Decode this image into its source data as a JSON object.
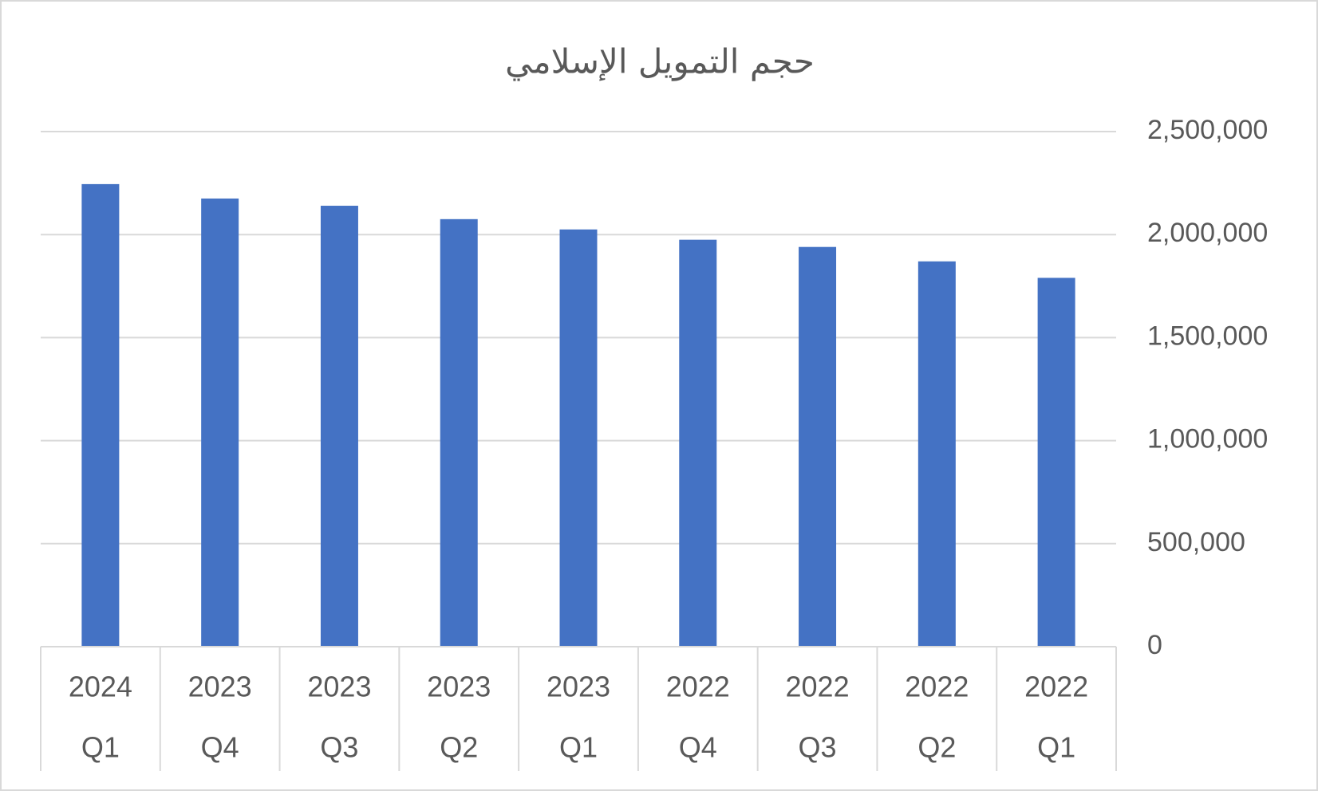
{
  "chart_data": {
    "type": "bar",
    "title": "حجم التمويل الإسلامي",
    "categories": [
      {
        "year": "2024",
        "quarter": "Q1"
      },
      {
        "year": "2023",
        "quarter": "Q4"
      },
      {
        "year": "2023",
        "quarter": "Q3"
      },
      {
        "year": "2023",
        "quarter": "Q2"
      },
      {
        "year": "2023",
        "quarter": "Q1"
      },
      {
        "year": "2022",
        "quarter": "Q4"
      },
      {
        "year": "2022",
        "quarter": "Q3"
      },
      {
        "year": "2022",
        "quarter": "Q2"
      },
      {
        "year": "2022",
        "quarter": "Q1"
      }
    ],
    "values": [
      2245000,
      2175000,
      2140000,
      2075000,
      2025000,
      1975000,
      1940000,
      1870000,
      1790000
    ],
    "color": "#4472c4",
    "ylim": [
      0,
      2500000
    ],
    "yticks": [
      0,
      {
        "value": 500000,
        "label": "500,000"
      },
      {
        "value": 1000000,
        "label": "1,000,000"
      },
      {
        "value": 1500000,
        "label": "1,500,000"
      },
      {
        "value": 2000000,
        "label": "2,000,000"
      },
      {
        "value": 2500000,
        "label": "2,500,000"
      }
    ],
    "grid": true,
    "y_axis_side": "right"
  }
}
